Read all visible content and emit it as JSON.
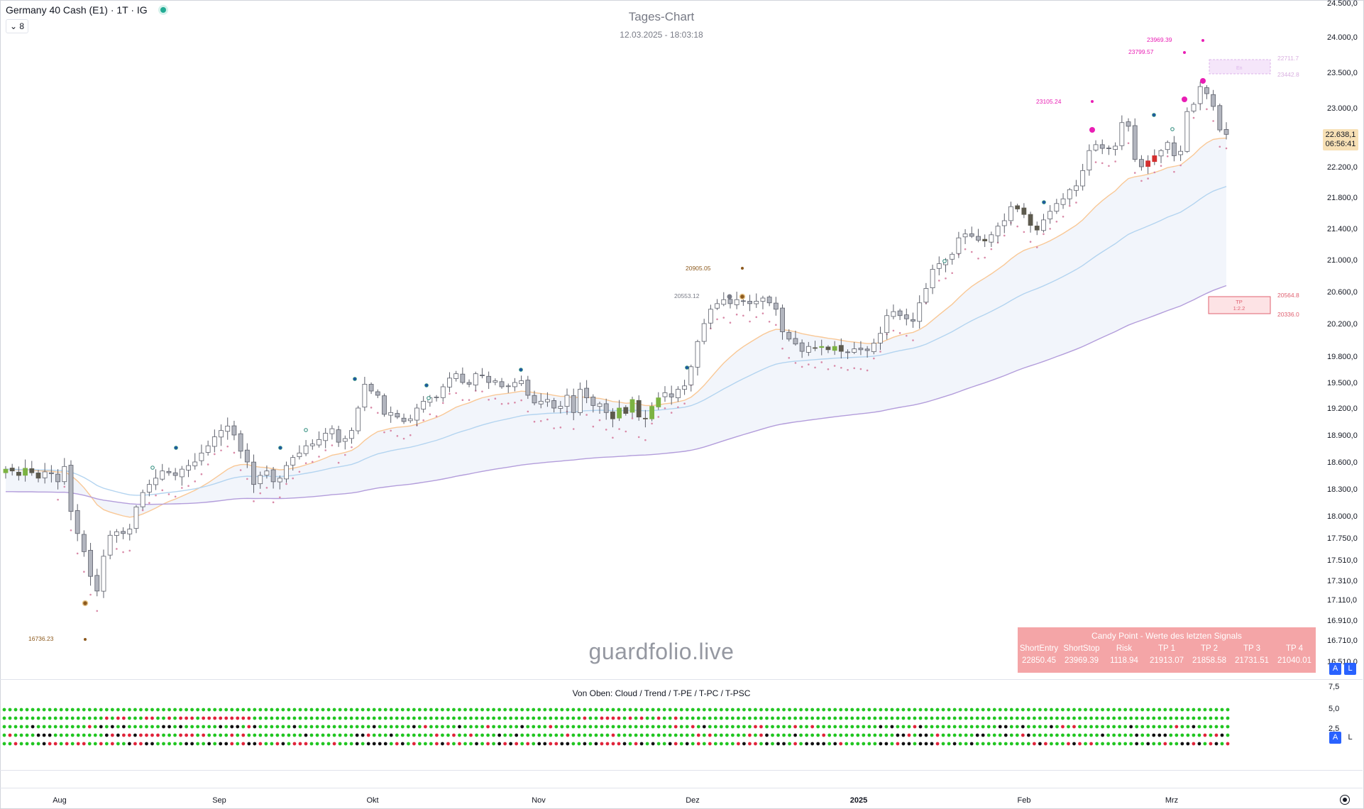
{
  "header": {
    "symbol": "Germany 40 Cash (E1) · 1T · IG",
    "indicator_count": "⌄ 8",
    "title": "Tages-Chart",
    "timestamp": "12.03.2025 - 18:03:18"
  },
  "watermark": "guardfolio.live",
  "subpanel_title": "Von Oben: Cloud / Trend / T-PE / T-PC / T-PSC",
  "price_tag": {
    "price": "22.638,1",
    "countdown": "06:56:41"
  },
  "axis_buttons": {
    "auto": "A",
    "log": "L"
  },
  "signal_table": {
    "title": "Candy Point - Werte des letzten Signals",
    "headers": [
      "ShortEntry",
      "ShortStop",
      "Risk",
      "TP 1",
      "TP 2",
      "TP 3",
      "TP 4"
    ],
    "values": [
      "22850.45",
      "23969.39",
      "1118.94",
      "21913.07",
      "21858.58",
      "21731.51",
      "21040.01"
    ]
  },
  "colors": {
    "up_candle": "#ffffff",
    "down_candle": "#b2b5be",
    "green_candle": "#7cb342",
    "dark_candle": "#5d5a4e",
    "red_candle": "#d32f2f",
    "brown_candle": "#8d4a3a",
    "ema_orange": "#f9c896",
    "ema_blue": "#b3d4f0",
    "ema_purple": "#b39ddb",
    "trail_dots": "#d98aa8",
    "magenta": "#e91eb4",
    "sub_green": "#21c521",
    "sub_red": "#e0243a",
    "sub_black": "#111111"
  },
  "chart_data": {
    "type": "candlestick",
    "title": "Tages-Chart",
    "y_axis_ticks": [
      "24.500,0",
      "24.000,0",
      "23.500,0",
      "23.000,0",
      "22.200,0",
      "21.800,0",
      "21.400,0",
      "21.000,0",
      "20.600,0",
      "20.200,0",
      "19.800,0",
      "19.500,0",
      "19.200,0",
      "18.900,0",
      "18.600,0",
      "18.300,0",
      "18.000,0",
      "17.750,0",
      "17.510,0",
      "17.310,0",
      "17.110,0",
      "16.910,0",
      "16.710,0",
      "16.510,0"
    ],
    "x_axis_ticks": [
      "Aug",
      "Sep",
      "Okt",
      "Nov",
      "Dez",
      "2025",
      "Feb",
      "Mrz"
    ],
    "last_price": 22638.1,
    "close_series": [
      18520,
      18500,
      18450,
      18530,
      18480,
      18420,
      18490,
      18470,
      18380,
      18550,
      18050,
      17800,
      17600,
      17350,
      17200,
      17550,
      17780,
      17820,
      17800,
      17850,
      18100,
      18260,
      18350,
      18420,
      18500,
      18480,
      18450,
      18520,
      18560,
      18600,
      18700,
      18780,
      18880,
      18950,
      19000,
      18900,
      18720,
      18600,
      18350,
      18450,
      18500,
      18380,
      18420,
      18560,
      18650,
      18700,
      18780,
      18800,
      18850,
      18920,
      18970,
      18820,
      18860,
      18950,
      19200,
      19480,
      19400,
      19350,
      19130,
      19150,
      19100,
      19050,
      19080,
      19200,
      19280,
      19320,
      19330,
      19450,
      19550,
      19600,
      19500,
      19480,
      19600,
      19580,
      19500,
      19520,
      19450,
      19460,
      19500,
      19520,
      19350,
      19260,
      19280,
      19300,
      19200,
      19220,
      19350,
      19150,
      19420,
      19320,
      19230,
      19250,
      19150,
      19080,
      19200,
      19140,
      19300,
      19100,
      19080,
      19220,
      19320,
      19380,
      19330,
      19420,
      19460,
      19680,
      19980,
      20200,
      20380,
      20450,
      20500,
      20450,
      20500,
      20480,
      20450,
      20480,
      20520,
      20460,
      20380,
      20100,
      20010,
      19950,
      19860,
      19920,
      19900,
      19920,
      19880,
      19920,
      19860,
      19850,
      19890,
      19880,
      19870,
      19960,
      20080,
      20300,
      20350,
      20300,
      20260,
      20230,
      20460,
      20640,
      20880,
      20950,
      21000,
      21070,
      21280,
      21330,
      21300,
      21250,
      21240,
      21320,
      21430,
      21500,
      21680,
      21650,
      21580,
      21440,
      21380,
      21510,
      21620,
      21720,
      21780,
      21900,
      21950,
      22150,
      22420,
      22500,
      22450,
      22450,
      22480,
      22800,
      22750,
      22300,
      22200,
      22280,
      22350,
      22420,
      22530,
      22350,
      22410,
      22950,
      23050,
      23300,
      23200,
      23020,
      22700,
      22640
    ]
  }
}
